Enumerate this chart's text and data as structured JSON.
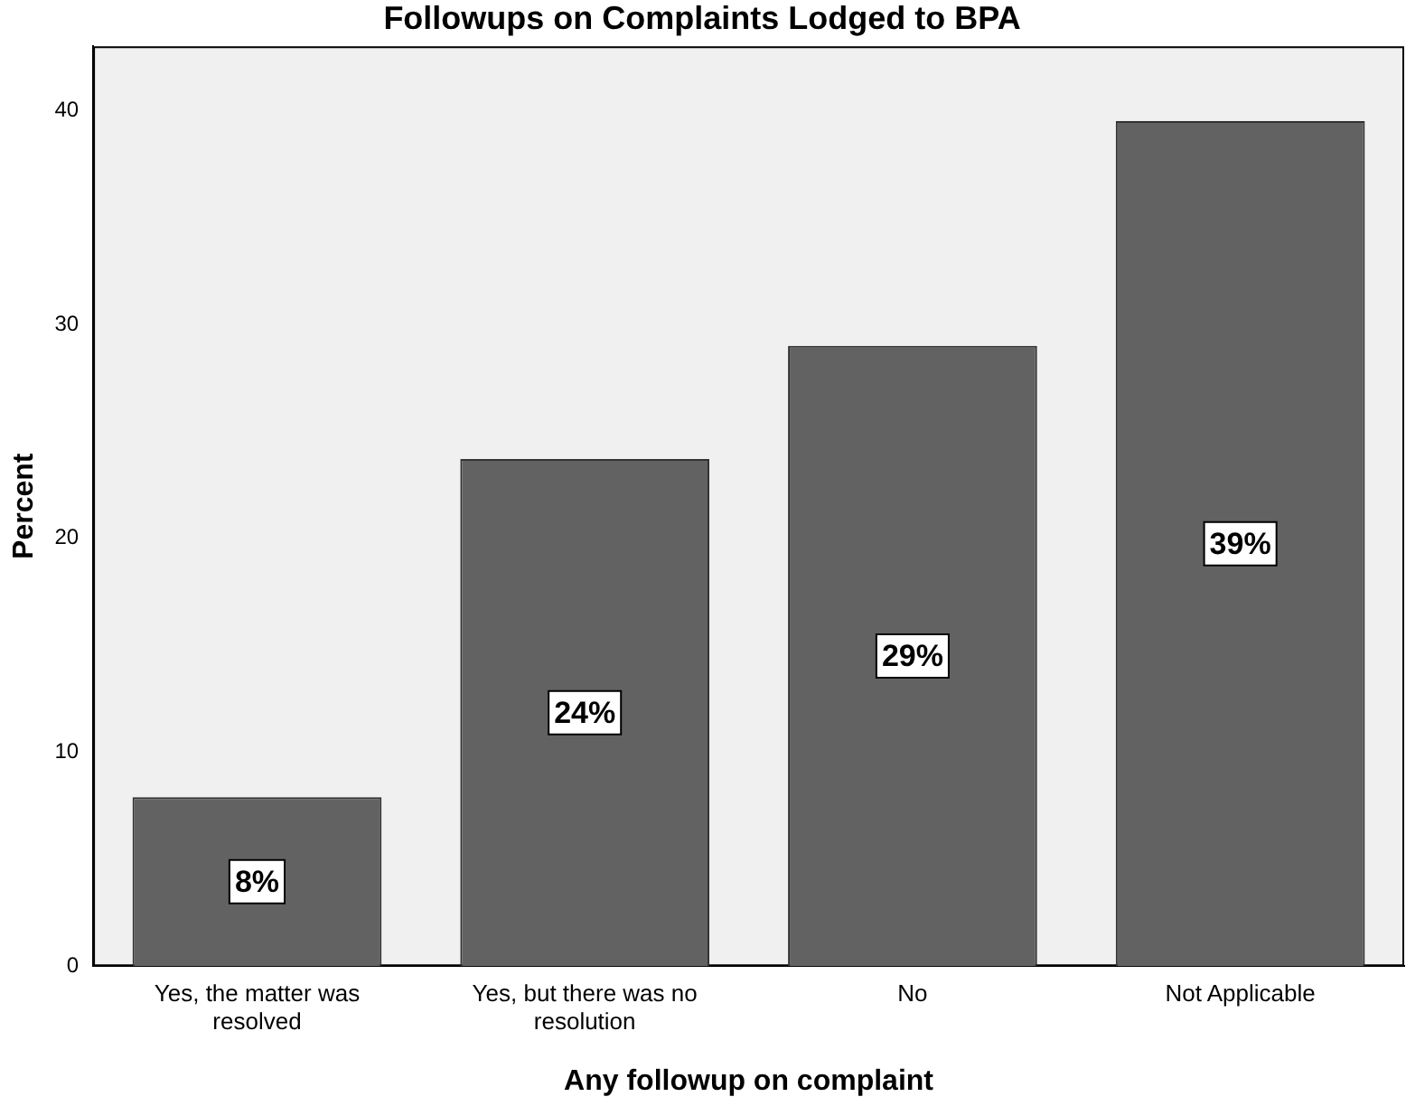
{
  "chart_data": {
    "type": "bar",
    "title": "Followups on Complaints Lodged to BPA",
    "xlabel": "Any followup on complaint",
    "ylabel": "Percent",
    "categories": [
      "Yes, the matter was resolved",
      "Yes, but there was no resolution",
      "No",
      "Not Applicable"
    ],
    "values": [
      7.9,
      23.7,
      29.0,
      39.5
    ],
    "value_labels": [
      "8%",
      "24%",
      "29%",
      "39%"
    ],
    "color": "#626262",
    "ylim": [
      0,
      43
    ],
    "yticks": [
      0,
      10,
      20,
      30,
      40
    ],
    "grid": false,
    "legend": false
  }
}
